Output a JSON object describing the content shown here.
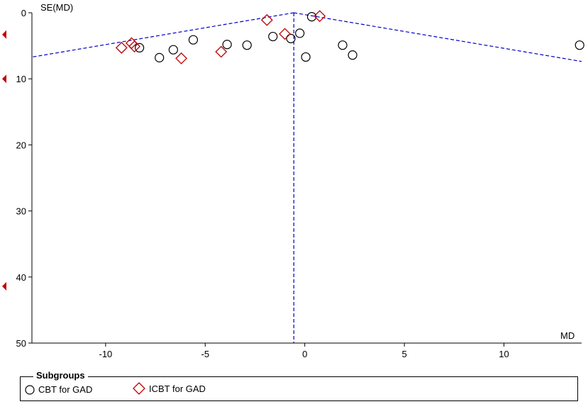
{
  "chart_data": {
    "type": "scatter",
    "title": "",
    "ylabel": "SE(MD)",
    "xlabel": "MD",
    "xlim": [
      -13.7,
      13.9
    ],
    "ylim": [
      0,
      50
    ],
    "y_inverted": true,
    "x_ticks": [
      -10,
      -5,
      0,
      5,
      10
    ],
    "y_ticks": [
      0,
      10,
      20,
      30,
      40,
      50
    ],
    "pooled_estimate": -0.55,
    "funnel_limits": "dashed blue lines (pseudo 95% CI), vertical dashed line at pooled estimate",
    "side_markers_y": [
      3.3,
      10.0,
      41.4
    ],
    "legend": {
      "title": "Subgroups",
      "placement": "bottom"
    },
    "series": [
      {
        "name": "CBT for GAD",
        "marker": "circle",
        "color": "#000000",
        "points": [
          {
            "x": -8.3,
            "y": 5.3
          },
          {
            "x": -7.3,
            "y": 6.8
          },
          {
            "x": -6.6,
            "y": 5.6
          },
          {
            "x": -5.6,
            "y": 4.1
          },
          {
            "x": -3.9,
            "y": 4.8
          },
          {
            "x": -2.9,
            "y": 4.9
          },
          {
            "x": -1.6,
            "y": 3.6
          },
          {
            "x": -0.7,
            "y": 3.9
          },
          {
            "x": -0.25,
            "y": 3.1
          },
          {
            "x": 0.05,
            "y": 6.7
          },
          {
            "x": 0.35,
            "y": 0.6
          },
          {
            "x": 1.9,
            "y": 4.9
          },
          {
            "x": 2.4,
            "y": 6.4
          },
          {
            "x": 13.8,
            "y": 4.9
          }
        ]
      },
      {
        "name": "ICBT for GAD",
        "marker": "diamond",
        "color": "#c00000",
        "points": [
          {
            "x": -9.2,
            "y": 5.3
          },
          {
            "x": -8.7,
            "y": 4.6
          },
          {
            "x": -8.55,
            "y": 5.1
          },
          {
            "x": -6.2,
            "y": 6.9
          },
          {
            "x": -4.2,
            "y": 5.9
          },
          {
            "x": -1.9,
            "y": 1.1
          },
          {
            "x": -1.0,
            "y": 3.2
          },
          {
            "x": 0.75,
            "y": 0.5
          }
        ]
      }
    ]
  },
  "colors": {
    "funnel": "#0000cc",
    "axis": "#000000",
    "side_marker": "#c00000"
  }
}
